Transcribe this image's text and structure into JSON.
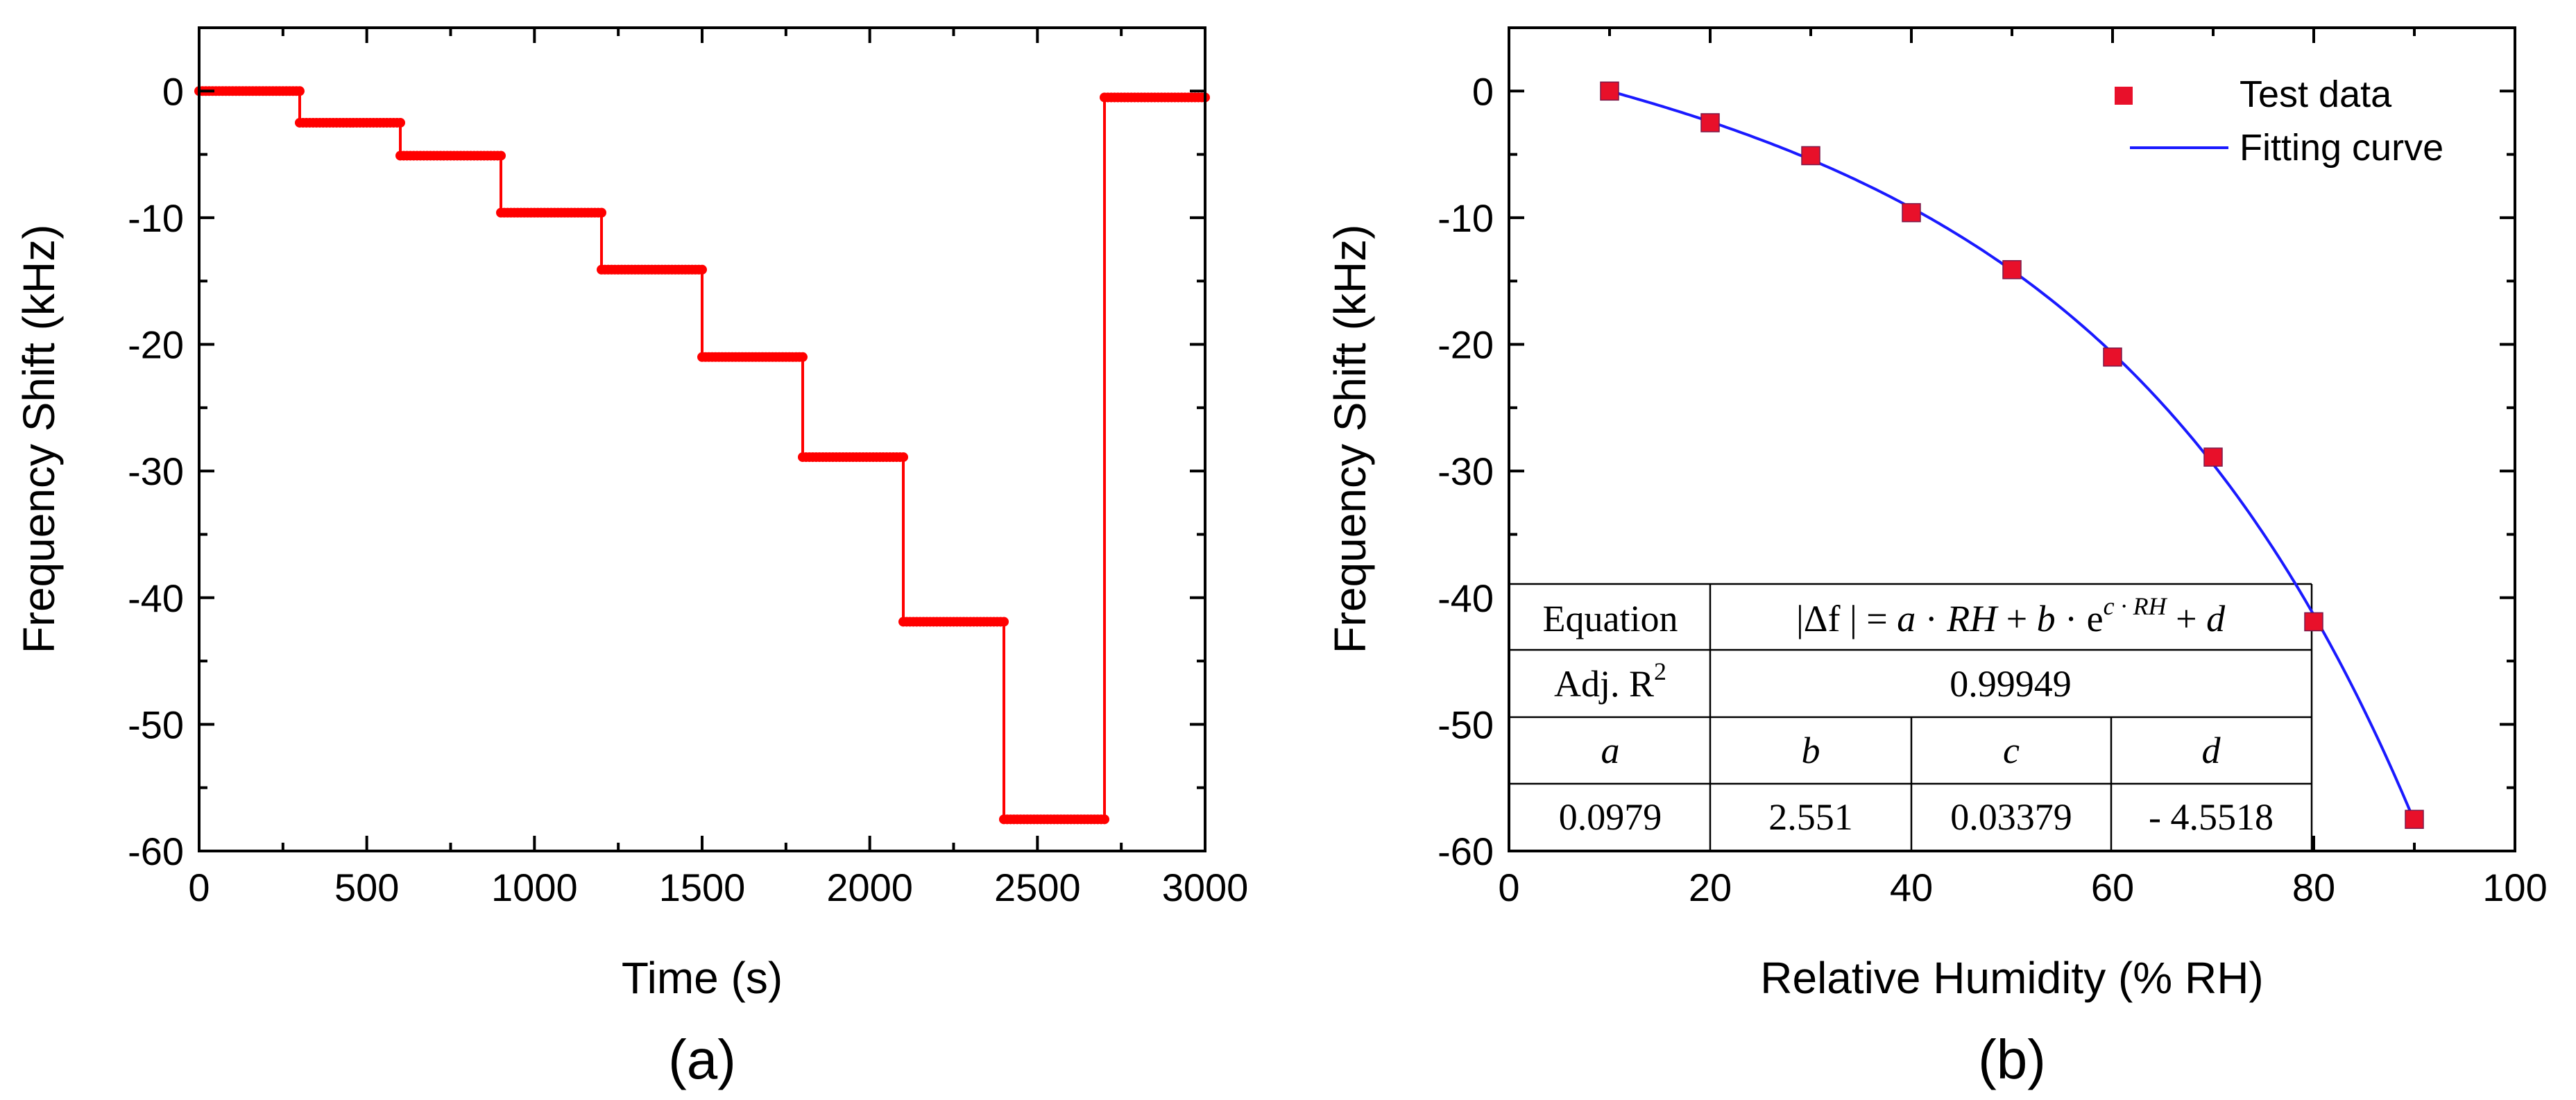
{
  "chart_data": [
    {
      "panel": "(a)",
      "type": "line",
      "title": "",
      "xlabel": "Time (s)",
      "ylabel": "Frequency Shift (kHz)",
      "xlim": [
        0,
        3000
      ],
      "ylim": [
        -60,
        5
      ],
      "xticks": [
        0,
        500,
        1000,
        1500,
        2000,
        2500,
        3000
      ],
      "yticks": [
        0,
        -10,
        -20,
        -30,
        -40,
        -50,
        -60
      ],
      "grid": false,
      "color": "#ff0000",
      "series": [
        {
          "name": "Frequency shift vs time",
          "steps": [
            {
              "t_start": 0,
              "t_end": 300,
              "value": 0
            },
            {
              "t_start": 300,
              "t_end": 600,
              "value": -2.5
            },
            {
              "t_start": 600,
              "t_end": 900,
              "value": -5.1
            },
            {
              "t_start": 900,
              "t_end": 1200,
              "value": -9.6
            },
            {
              "t_start": 1200,
              "t_end": 1500,
              "value": -14.1
            },
            {
              "t_start": 1500,
              "t_end": 1800,
              "value": -21.0
            },
            {
              "t_start": 1800,
              "t_end": 2100,
              "value": -28.9
            },
            {
              "t_start": 2100,
              "t_end": 2400,
              "value": -41.9
            },
            {
              "t_start": 2400,
              "t_end": 2700,
              "value": -57.5
            },
            {
              "t_start": 2700,
              "t_end": 3000,
              "value": -0.5
            }
          ]
        }
      ]
    },
    {
      "panel": "(b)",
      "type": "scatter",
      "title": "",
      "xlabel": "Relative Humidity (% RH)",
      "ylabel": "Frequency Shift (kHz)",
      "xlim": [
        0,
        100
      ],
      "ylim": [
        -60,
        5
      ],
      "xticks": [
        0,
        20,
        40,
        60,
        80,
        100
      ],
      "yticks": [
        0,
        -10,
        -20,
        -30,
        -40,
        -50,
        -60
      ],
      "grid": false,
      "legend_position": "top-right",
      "series": [
        {
          "name": "Test data",
          "marker": "square",
          "color": "#e8102a",
          "x": [
            10,
            20,
            30,
            40,
            50,
            60,
            70,
            80,
            90
          ],
          "y": [
            0,
            -2.5,
            -5.1,
            -9.6,
            -14.1,
            -21.0,
            -28.9,
            -41.9,
            -57.5
          ]
        },
        {
          "name": "Fitting curve",
          "line": true,
          "color": "#1a1aff",
          "fit": {
            "a": 0.0979,
            "b": 2.551,
            "c": 0.03379,
            "d": -4.5518
          },
          "x_range": [
            10,
            90
          ]
        }
      ],
      "table": {
        "eq_label": "Equation",
        "eq_lhs": "|Δf | = ",
        "eq_a": "a",
        "eq_dot1": " · ",
        "eq_rh1": "RH",
        "eq_plus1": " + ",
        "eq_b": "b",
        "eq_dot2": " · e",
        "eq_exp": "c · RH",
        "eq_plus2": " + ",
        "eq_d": "d",
        "r2_label": "Adj. R",
        "r2_sup": "2",
        "r2_value": "0.99949",
        "params": [
          "a",
          "b",
          "c",
          "d"
        ],
        "values": [
          "0.0979",
          "2.551",
          "0.03379",
          "- 4.5518"
        ]
      }
    }
  ],
  "panel_labels": {
    "a": "(a)",
    "b": "(b)"
  }
}
